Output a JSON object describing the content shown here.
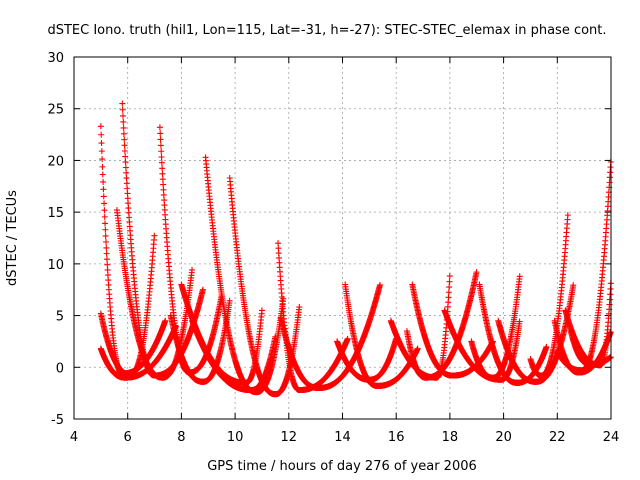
{
  "chart_data": {
    "type": "scatter",
    "title": "dSTEC Iono. truth (hil1, Lon=115, Lat=-31, h=-27): STEC-STEC_elemax in phase cont.",
    "xlabel": "GPS time / hours of day 276 of year 2006",
    "ylabel": "dSTEC  / TECUs",
    "xlim": [
      4,
      24
    ],
    "ylim": [
      -5,
      30
    ],
    "xticks": [
      4,
      6,
      8,
      10,
      12,
      14,
      16,
      18,
      20,
      22,
      24
    ],
    "yticks": [
      -5,
      0,
      5,
      10,
      15,
      20,
      25,
      30
    ],
    "xtick_labels": [
      "4",
      "6",
      "8",
      "10",
      "12",
      "14",
      "16",
      "18",
      "20",
      "22",
      "24"
    ],
    "ytick_labels": [
      "-5",
      "0",
      "5",
      "10",
      "15",
      "20",
      "25",
      "30"
    ],
    "grid": true,
    "marker": "+",
    "color": "#ff0000",
    "arcs": [
      {
        "start": 5.0,
        "end": 7.4,
        "vmin": 5.8,
        "pre_peak": 23.3,
        "post_peak": 4.5,
        "min_value": -0.6
      },
      {
        "start": 5.6,
        "end": 8.4,
        "vmin": 7.3,
        "pre_peak": 15.2,
        "post_peak": 9.5,
        "min_value": -1.0
      },
      {
        "start": 5.8,
        "end": 8.8,
        "vmin": 7.0,
        "pre_peak": 25.5,
        "post_peak": 7.5,
        "min_value": -0.8
      },
      {
        "start": 5.0,
        "end": 7.0,
        "vmin": 6.1,
        "pre_peak": 5.2,
        "post_peak": 13.0,
        "min_value": -0.7
      },
      {
        "start": 5.0,
        "end": 7.8,
        "vmin": 5.9,
        "pre_peak": 1.8,
        "post_peak": 4.0,
        "min_value": -1.0
      },
      {
        "start": 7.2,
        "end": 9.5,
        "vmin": 8.3,
        "pre_peak": 23.2,
        "post_peak": 7.0,
        "min_value": -0.5
      },
      {
        "start": 7.6,
        "end": 9.8,
        "vmin": 8.8,
        "pre_peak": 5.0,
        "post_peak": 6.5,
        "min_value": -1.4
      },
      {
        "start": 8.0,
        "end": 11.0,
        "vmin": 10.4,
        "pre_peak": 8.0,
        "post_peak": 5.5,
        "min_value": -1.5
      },
      {
        "start": 8.4,
        "end": 11.5,
        "vmin": 10.6,
        "pre_peak": 4.5,
        "post_peak": 3.0,
        "min_value": -2.2
      },
      {
        "start": 8.9,
        "end": 11.8,
        "vmin": 10.8,
        "pre_peak": 20.3,
        "post_peak": 6.8,
        "min_value": -2.4
      },
      {
        "start": 9.8,
        "end": 12.4,
        "vmin": 11.5,
        "pre_peak": 18.3,
        "post_peak": 6.0,
        "min_value": -2.6
      },
      {
        "start": 11.6,
        "end": 14.2,
        "vmin": 12.4,
        "pre_peak": 12.0,
        "post_peak": 2.8,
        "min_value": -2.2
      },
      {
        "start": 11.7,
        "end": 15.4,
        "vmin": 13.1,
        "pre_peak": 4.8,
        "post_peak": 8.0,
        "min_value": -2.0
      },
      {
        "start": 14.1,
        "end": 16.8,
        "vmin": 15.3,
        "pre_peak": 8.0,
        "post_peak": 1.8,
        "min_value": -1.8
      },
      {
        "start": 13.8,
        "end": 16.0,
        "vmin": 15.0,
        "pre_peak": 2.5,
        "post_peak": 2.8,
        "min_value": -1.2
      },
      {
        "start": 15.8,
        "end": 18.0,
        "vmin": 17.5,
        "pre_peak": 4.5,
        "post_peak": 9.0,
        "min_value": -1.0
      },
      {
        "start": 16.6,
        "end": 19.6,
        "vmin": 18.1,
        "pre_peak": 8.0,
        "post_peak": 2.5,
        "min_value": -0.8
      },
      {
        "start": 16.4,
        "end": 19.0,
        "vmin": 17.1,
        "pre_peak": 3.5,
        "post_peak": 9.3,
        "min_value": -1.0
      },
      {
        "start": 17.8,
        "end": 20.6,
        "vmin": 19.9,
        "pre_peak": 5.5,
        "post_peak": 4.5,
        "min_value": -1.2
      },
      {
        "start": 19.1,
        "end": 21.6,
        "vmin": 20.5,
        "pre_peak": 8.0,
        "post_peak": 2.0,
        "min_value": -1.5
      },
      {
        "start": 18.8,
        "end": 20.6,
        "vmin": 19.6,
        "pre_peak": 2.5,
        "post_peak": 8.8,
        "min_value": -1.0
      },
      {
        "start": 19.8,
        "end": 22.6,
        "vmin": 21.2,
        "pre_peak": 4.5,
        "post_peak": 8.0,
        "min_value": -1.4
      },
      {
        "start": 21.9,
        "end": 24.0,
        "vmin": 22.8,
        "pre_peak": 4.5,
        "post_peak": 3.5,
        "min_value": -0.5
      },
      {
        "start": 21.0,
        "end": 22.4,
        "vmin": 21.4,
        "pre_peak": 0.8,
        "post_peak": 15.0,
        "min_value": -0.8
      },
      {
        "start": 22.0,
        "end": 24.0,
        "vmin": 22.9,
        "pre_peak": 1.5,
        "post_peak": 20.2,
        "min_value": -0.3
      },
      {
        "start": 22.3,
        "end": 24.0,
        "vmin": 23.6,
        "pre_peak": 5.5,
        "post_peak": 8.5,
        "min_value": 0.2
      },
      {
        "start": 22.5,
        "end": 24.0,
        "vmin": 23.2,
        "pre_peak": 3.5,
        "post_peak": 1.0,
        "min_value": 0.3
      }
    ]
  }
}
